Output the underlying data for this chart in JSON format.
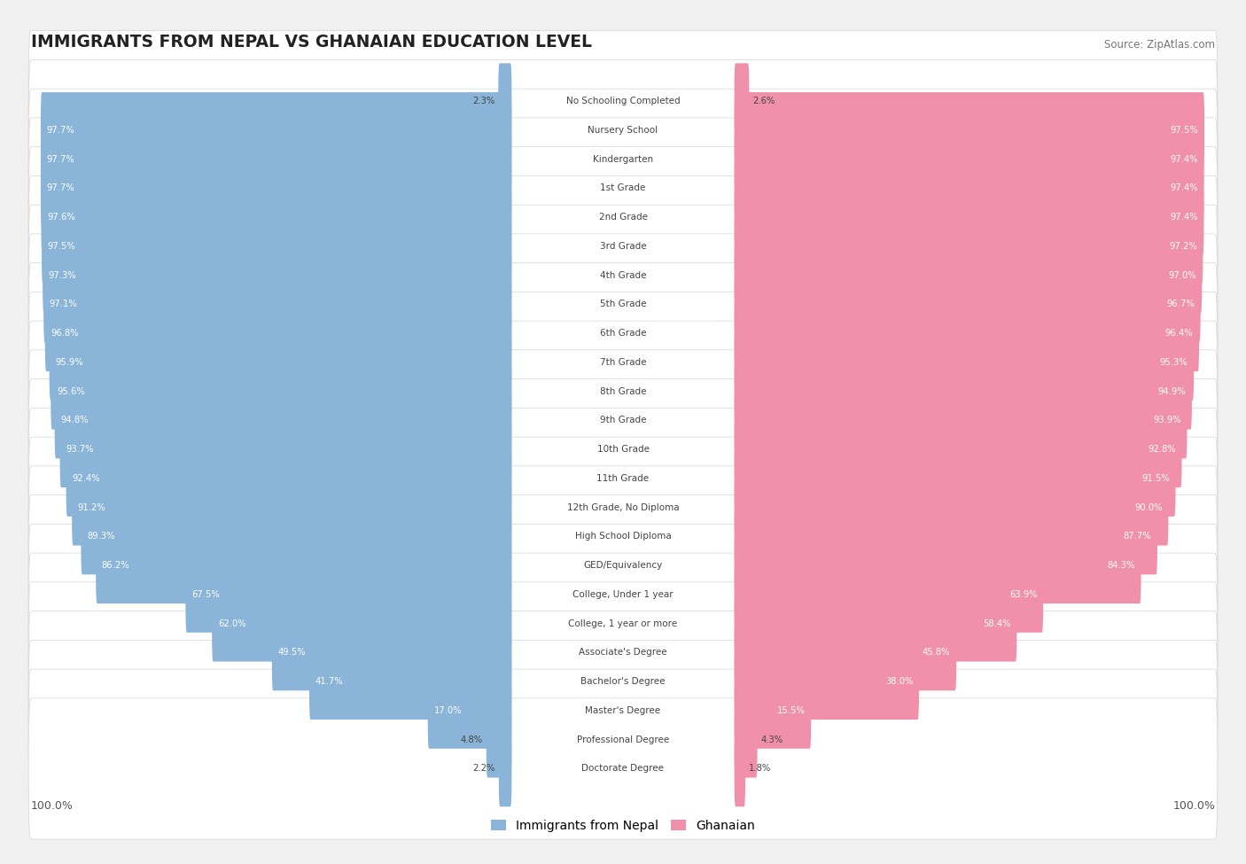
{
  "title": "IMMIGRANTS FROM NEPAL VS GHANAIAN EDUCATION LEVEL",
  "source": "Source: ZipAtlas.com",
  "categories": [
    "No Schooling Completed",
    "Nursery School",
    "Kindergarten",
    "1st Grade",
    "2nd Grade",
    "3rd Grade",
    "4th Grade",
    "5th Grade",
    "6th Grade",
    "7th Grade",
    "8th Grade",
    "9th Grade",
    "10th Grade",
    "11th Grade",
    "12th Grade, No Diploma",
    "High School Diploma",
    "GED/Equivalency",
    "College, Under 1 year",
    "College, 1 year or more",
    "Associate's Degree",
    "Bachelor's Degree",
    "Master's Degree",
    "Professional Degree",
    "Doctorate Degree"
  ],
  "nepal_values": [
    2.3,
    97.7,
    97.7,
    97.7,
    97.6,
    97.5,
    97.3,
    97.1,
    96.8,
    95.9,
    95.6,
    94.8,
    93.7,
    92.4,
    91.2,
    89.3,
    86.2,
    67.5,
    62.0,
    49.5,
    41.7,
    17.0,
    4.8,
    2.2
  ],
  "ghana_values": [
    2.6,
    97.5,
    97.4,
    97.4,
    97.4,
    97.2,
    97.0,
    96.7,
    96.4,
    95.3,
    94.9,
    93.9,
    92.8,
    91.5,
    90.0,
    87.7,
    84.3,
    63.9,
    58.4,
    45.8,
    38.0,
    15.5,
    4.3,
    1.8
  ],
  "nepal_color": "#8ab4d8",
  "ghana_color": "#f090aa",
  "background_color": "#f0f0f0",
  "bar_bg_color": "#ffffff",
  "row_bg_color": "#e8e8e8",
  "text_color_dark": "#444444",
  "text_color_white": "#ffffff",
  "legend_nepal": "Immigrants from Nepal",
  "legend_ghana": "Ghanaian",
  "axis_label_left": "100.0%",
  "axis_label_right": "100.0%",
  "label_threshold": 10.0
}
